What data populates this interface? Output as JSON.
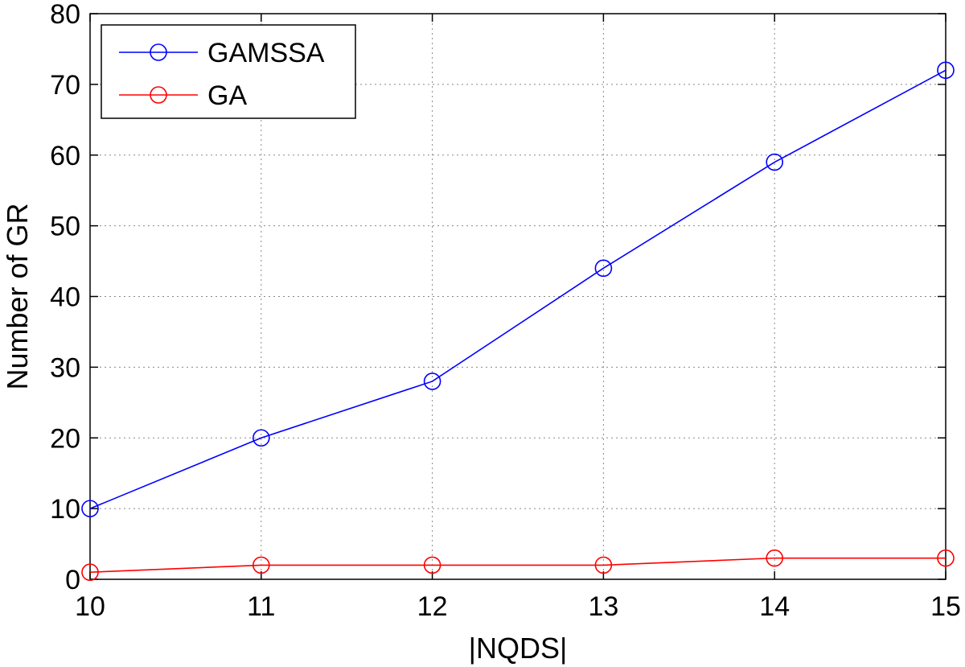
{
  "chart_data": {
    "type": "line",
    "xlabel": "|NQDS|",
    "ylabel": "Number of GR",
    "x": [
      10,
      11,
      12,
      13,
      14,
      15
    ],
    "xlim": [
      10,
      15
    ],
    "ylim": [
      0,
      80
    ],
    "xticks": [
      "10",
      "11",
      "12",
      "13",
      "14",
      "15"
    ],
    "yticks": [
      "0",
      "10",
      "20",
      "30",
      "40",
      "50",
      "60",
      "70",
      "80"
    ],
    "grid": true,
    "legend_position": "top-left",
    "series": [
      {
        "name": "GAMSSA",
        "color": "#0000ff",
        "marker": "circle",
        "values": [
          10,
          20,
          28,
          44,
          59,
          72
        ]
      },
      {
        "name": "GA",
        "color": "#ff0000",
        "marker": "circle",
        "values": [
          1,
          2,
          2,
          2,
          3,
          3
        ]
      }
    ]
  }
}
